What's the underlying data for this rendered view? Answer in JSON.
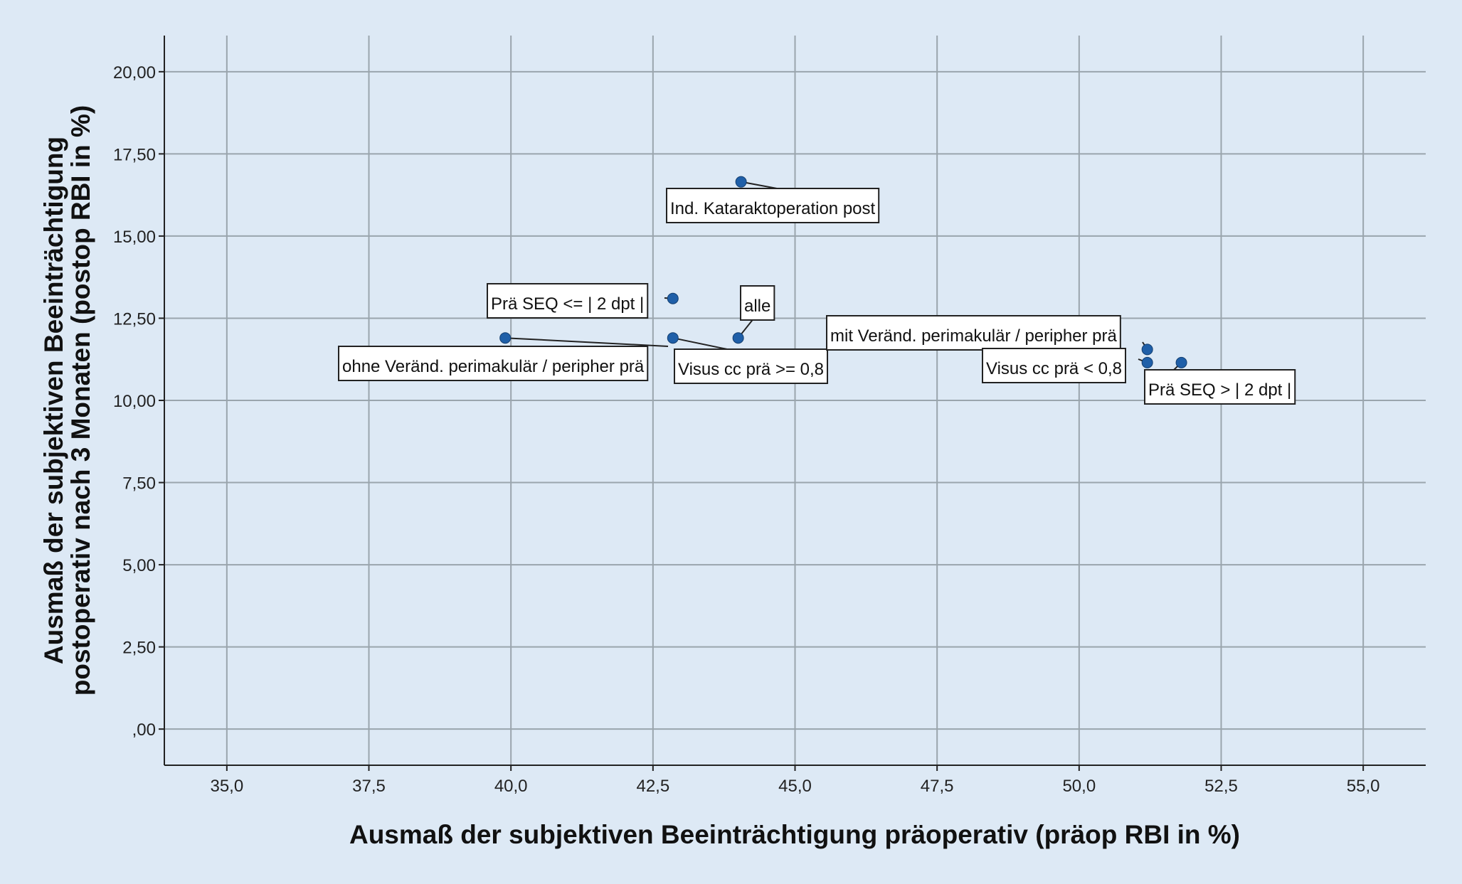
{
  "chart_data": {
    "type": "scatter",
    "title": "",
    "xlabel": "Ausmaß der subjektiven Beeinträchtigung präoperativ (präop RBI in %)",
    "ylabel_lines": [
      "Ausmaß der subjektiven Beeinträchtigung",
      "postoperativ nach 3 Monaten (postop RBI in %)"
    ],
    "xlim": [
      33.9,
      56.1
    ],
    "ylim": [
      -1.1,
      21.1
    ],
    "x_ticks": [
      35.0,
      37.5,
      40.0,
      42.5,
      45.0,
      47.5,
      50.0,
      52.5,
      55.0
    ],
    "x_tick_labels": [
      "35,0",
      "37,5",
      "40,0",
      "42,5",
      "45,0",
      "47,5",
      "50,0",
      "52,5",
      "55,0"
    ],
    "y_ticks": [
      0,
      2.5,
      5,
      7.5,
      10,
      12.5,
      15,
      17.5,
      20
    ],
    "y_tick_labels": [
      ",00",
      "2,50",
      "5,00",
      "7,50",
      "10,00",
      "12,50",
      "15,00",
      "17,50",
      "20,00"
    ],
    "grid": true,
    "colors": {
      "point": "#1f5fa8",
      "grid": "#9aa5ad",
      "axis": "#222222"
    },
    "points": [
      {
        "label": "Ind. Kataraktoperation post",
        "x": 44.05,
        "y": 16.65
      },
      {
        "label": "Prä SEQ <= | 2 dpt |",
        "x": 42.85,
        "y": 13.1
      },
      {
        "label": "alle",
        "x": 44.0,
        "y": 11.9
      },
      {
        "label": "ohne Veränd. perimakulär / peripher prä",
        "x": 39.9,
        "y": 11.9
      },
      {
        "label": "Visus cc prä >= 0,8",
        "x": 42.85,
        "y": 11.9
      },
      {
        "label": "mit Veränd. perimakulär / peripher prä",
        "x": 51.2,
        "y": 11.55
      },
      {
        "label": "Visus cc prä < 0,8",
        "x": 51.2,
        "y": 11.15
      },
      {
        "label": "Prä SEQ > | 2 dpt |",
        "x": 51.8,
        "y": 11.15
      }
    ]
  }
}
